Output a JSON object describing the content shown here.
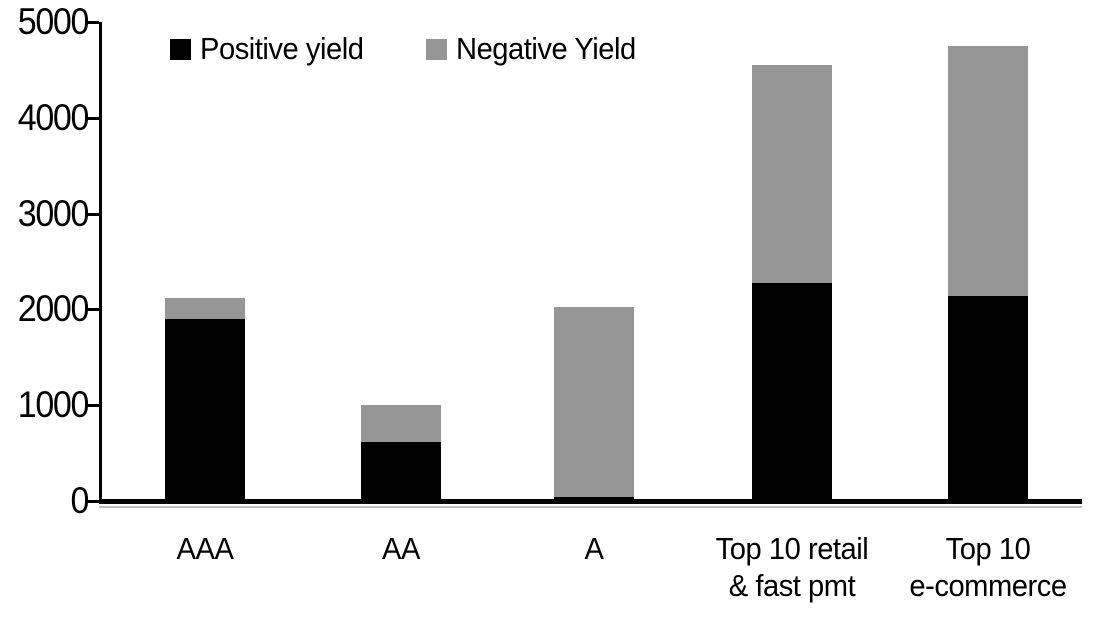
{
  "chart_data": {
    "type": "bar",
    "subtype": "stacked-vertical",
    "title": "",
    "xlabel": "",
    "ylabel": "",
    "categories": [
      "AAA",
      "AA",
      "A",
      "Top 10 retail\n& fast pmt",
      "Top 10\ne-commerce"
    ],
    "series": [
      {
        "name": "Positive yield",
        "color": "#000000",
        "values": [
          1900,
          620,
          40,
          2280,
          2140
        ]
      },
      {
        "name": "Negative Yield",
        "color": "#969696",
        "values": [
          220,
          380,
          1990,
          2270,
          2610
        ]
      }
    ],
    "stacked_totals": [
      2120,
      1000,
      2030,
      4550,
      4750
    ],
    "ylim": [
      0,
      5000
    ],
    "yticks": [
      "0",
      "1000",
      "2000",
      "3000",
      "4000",
      "5000"
    ],
    "grid": "off",
    "legend_position": "top-left-inside",
    "axis_color": "#000000",
    "background_color": "#ffffff"
  }
}
